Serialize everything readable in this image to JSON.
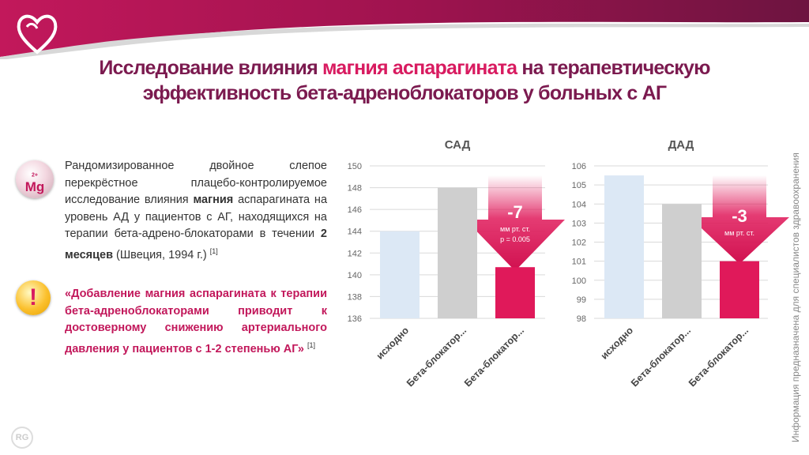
{
  "header": {
    "title_part1": "Исследование влияния ",
    "title_highlight": "магния аспарагината",
    "title_part2": " на терапевтическую",
    "title_line2": "эффективность бета-адреноблокаторов у больных с АГ"
  },
  "badges": {
    "mg_label": "Mg",
    "mg_superscript": "2+",
    "warn_label": "!"
  },
  "study": {
    "text_a": "Рандомизированное двойное слепое перекрёстное плацебо-контролируемое исследование влияния ",
    "text_b": "магния",
    "text_c": " аспарагината на уровень АД у пациентов с АГ, находящихся на терапии бета-адрено-блокаторами в течении ",
    "text_d": "2 месяцев",
    "text_e": " (Швеция, 1994 г.) ",
    "ref": "[1]"
  },
  "quote": {
    "text": "«Добавление магния аспарагината к терапии бета-адреноблокаторами приводит к достоверному снижению артериального давления у пациентов с 1-2 степенью АГ»",
    "ref": "[1]"
  },
  "side_note": "Информация предназначена для специалистов здравоохранения",
  "footer_logo": "RG",
  "colors": {
    "baseline": "#dce8f5",
    "bb": "#cfcfcf",
    "bb_mg": "#e0195a",
    "title": "#7b1a4f",
    "accent": "#d81b60"
  },
  "chart_data": [
    {
      "type": "bar",
      "title": "САД",
      "categories": [
        "исходно",
        "Бета-блокатор...",
        "Бета-блокатор..."
      ],
      "values": [
        144,
        148,
        140.7
      ],
      "ylim": [
        136,
        150
      ],
      "yticks": [
        "136",
        "138",
        "140",
        "142",
        "144",
        "146",
        "148",
        "150"
      ],
      "grid": true,
      "annotation": {
        "value": "-7",
        "unit": "мм рт. ст.",
        "pvalue": "p = 0.005"
      }
    },
    {
      "type": "bar",
      "title": "ДАД",
      "categories": [
        "исходно",
        "Бета-блокатор...",
        "Бета-блокатор..."
      ],
      "values": [
        105.5,
        104,
        101
      ],
      "ylim": [
        98,
        106
      ],
      "yticks": [
        "98",
        "99",
        "100",
        "101",
        "102",
        "103",
        "104",
        "105",
        "106"
      ],
      "grid": true,
      "annotation": {
        "value": "-3",
        "unit": "мм рт. ст."
      }
    }
  ]
}
